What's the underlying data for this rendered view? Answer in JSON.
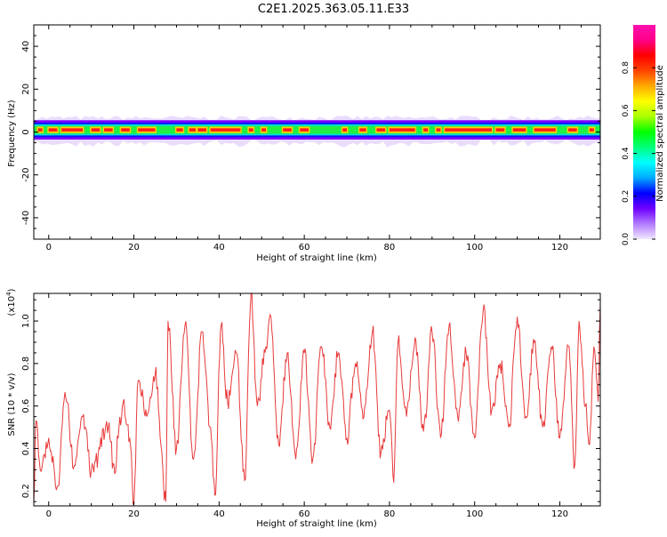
{
  "title": "C2E1.2025.363.05.11.E33",
  "chart_data": [
    {
      "type": "heatmap",
      "xlabel": "Height of straight line (km)",
      "ylabel": "Frequency (Hz)",
      "xlim": [
        -3.5,
        129.5
      ],
      "ylim": [
        -50,
        50
      ],
      "x_ticks": [
        0,
        20,
        40,
        60,
        80,
        100,
        120
      ],
      "y_ticks": [
        -40,
        -20,
        0,
        20,
        40
      ],
      "colorbar": {
        "label": "Normalized spectral amplitude",
        "range": [
          0,
          1
        ],
        "ticks": [
          "0.0",
          "0.2",
          "0.4",
          "0.6",
          "0.8"
        ],
        "colors": [
          "#f0e8ff",
          "#b27cff",
          "#6f00ff",
          "#0000ff",
          "#00aaff",
          "#00ffff",
          "#00ff7a",
          "#00ff00",
          "#a6ff00",
          "#ffff00",
          "#ffaa00",
          "#ff4400",
          "#ff0000",
          "#ff0088",
          "#ff10b0"
        ]
      },
      "band": {
        "center_hz": 1,
        "core_halfwidth_hz": 1.2,
        "mid_halfwidth_hz": 2.6,
        "outer_halfwidth_hz": 4.5,
        "peak_segments_km": [
          [
            -2.5,
            -1.5
          ],
          [
            0,
            2
          ],
          [
            3,
            8
          ],
          [
            10,
            12
          ],
          [
            13,
            15
          ],
          [
            17,
            19
          ],
          [
            21,
            25
          ],
          [
            30,
            31.5
          ],
          [
            33,
            34.5
          ],
          [
            35,
            37
          ],
          [
            38,
            45
          ],
          [
            47,
            48
          ],
          [
            50,
            51
          ],
          [
            55,
            57
          ],
          [
            59,
            61
          ],
          [
            69,
            70
          ],
          [
            73,
            74.5
          ],
          [
            77,
            79
          ],
          [
            80,
            86
          ],
          [
            88,
            89
          ],
          [
            91,
            92
          ],
          [
            93,
            104
          ],
          [
            105,
            107
          ],
          [
            109,
            112
          ],
          [
            114,
            119
          ],
          [
            122,
            124
          ],
          [
            127,
            128
          ]
        ]
      }
    },
    {
      "type": "line",
      "xlabel": "Height of straight line (km)",
      "ylabel": "SNR (10 * v/v)",
      "y_multiplier": "(x10",
      "y_multiplier_exp": "4",
      "xlim": [
        -3.5,
        129.5
      ],
      "ylim": [
        0.13,
        1.13
      ],
      "x_ticks": [
        0,
        20,
        40,
        60,
        80,
        100,
        120
      ],
      "y_ticks": [
        "0.2",
        "0.4",
        "0.6",
        "0.8",
        "1.0"
      ],
      "line_color": "#e83a3a",
      "key_points": [
        {
          "x": -3.5,
          "y": 0.15
        },
        {
          "x": -3.0,
          "y": 0.53
        },
        {
          "x": -2.0,
          "y": 0.3
        },
        {
          "x": 0.0,
          "y": 0.45
        },
        {
          "x": 2.0,
          "y": 0.22
        },
        {
          "x": 4.0,
          "y": 0.64
        },
        {
          "x": 6.0,
          "y": 0.32
        },
        {
          "x": 8.0,
          "y": 0.55
        },
        {
          "x": 10.0,
          "y": 0.3
        },
        {
          "x": 14.0,
          "y": 0.5
        },
        {
          "x": 15.5,
          "y": 0.28
        },
        {
          "x": 16.5,
          "y": 0.5
        },
        {
          "x": 17.5,
          "y": 0.62
        },
        {
          "x": 19.0,
          "y": 0.45
        },
        {
          "x": 20.0,
          "y": 0.14
        },
        {
          "x": 21.0,
          "y": 0.72
        },
        {
          "x": 23.0,
          "y": 0.55
        },
        {
          "x": 25.0,
          "y": 0.75
        },
        {
          "x": 27.5,
          "y": 0.15
        },
        {
          "x": 28.0,
          "y": 1.0
        },
        {
          "x": 30.0,
          "y": 0.4
        },
        {
          "x": 32.0,
          "y": 0.98
        },
        {
          "x": 34.0,
          "y": 0.35
        },
        {
          "x": 36.0,
          "y": 0.95
        },
        {
          "x": 38.0,
          "y": 0.5
        },
        {
          "x": 39.0,
          "y": 0.18
        },
        {
          "x": 40.5,
          "y": 0.98
        },
        {
          "x": 42.0,
          "y": 0.62
        },
        {
          "x": 44.0,
          "y": 0.85
        },
        {
          "x": 46.0,
          "y": 0.25
        },
        {
          "x": 47.5,
          "y": 1.13
        },
        {
          "x": 49.0,
          "y": 0.6
        },
        {
          "x": 51.0,
          "y": 0.88
        },
        {
          "x": 52.0,
          "y": 1.03
        },
        {
          "x": 54.0,
          "y": 0.42
        },
        {
          "x": 56.0,
          "y": 0.85
        },
        {
          "x": 58.0,
          "y": 0.35
        },
        {
          "x": 60.0,
          "y": 0.85
        },
        {
          "x": 62.0,
          "y": 0.35
        },
        {
          "x": 64.0,
          "y": 0.88
        },
        {
          "x": 66.0,
          "y": 0.5
        },
        {
          "x": 68.0,
          "y": 0.85
        },
        {
          "x": 70.0,
          "y": 0.45
        },
        {
          "x": 72.0,
          "y": 0.8
        },
        {
          "x": 74.0,
          "y": 0.55
        },
        {
          "x": 76.0,
          "y": 0.95
        },
        {
          "x": 78.0,
          "y": 0.38
        },
        {
          "x": 80.0,
          "y": 0.58
        },
        {
          "x": 81.0,
          "y": 0.24
        },
        {
          "x": 82.0,
          "y": 0.9
        },
        {
          "x": 84.0,
          "y": 0.55
        },
        {
          "x": 86.0,
          "y": 0.92
        },
        {
          "x": 88.0,
          "y": 0.48
        },
        {
          "x": 90.0,
          "y": 0.95
        },
        {
          "x": 92.0,
          "y": 0.45
        },
        {
          "x": 94.0,
          "y": 0.98
        },
        {
          "x": 96.0,
          "y": 0.55
        },
        {
          "x": 98.0,
          "y": 0.85
        },
        {
          "x": 100.0,
          "y": 0.45
        },
        {
          "x": 102.0,
          "y": 1.05
        },
        {
          "x": 104.0,
          "y": 0.58
        },
        {
          "x": 106.0,
          "y": 0.8
        },
        {
          "x": 108.0,
          "y": 0.5
        },
        {
          "x": 110.0,
          "y": 1.02
        },
        {
          "x": 112.0,
          "y": 0.55
        },
        {
          "x": 114.0,
          "y": 0.9
        },
        {
          "x": 116.0,
          "y": 0.5
        },
        {
          "x": 118.0,
          "y": 0.88
        },
        {
          "x": 120.0,
          "y": 0.45
        },
        {
          "x": 122.0,
          "y": 0.88
        },
        {
          "x": 123.5,
          "y": 0.32
        },
        {
          "x": 124.5,
          "y": 1.0
        },
        {
          "x": 126.0,
          "y": 0.6
        },
        {
          "x": 127.0,
          "y": 0.42
        },
        {
          "x": 128.0,
          "y": 0.88
        },
        {
          "x": 129.0,
          "y": 0.62
        },
        {
          "x": 129.5,
          "y": 1.08
        }
      ]
    }
  ]
}
